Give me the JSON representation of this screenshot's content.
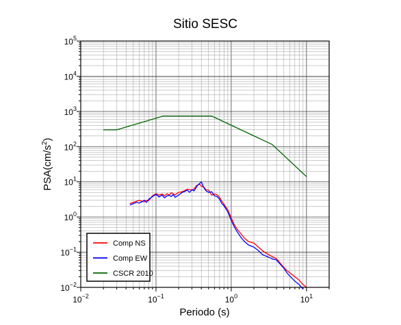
{
  "chart_data": {
    "type": "line",
    "title": "Sitio SESC",
    "xlabel": "Periodo (s)",
    "ylabel_base": "PSA(cm/s",
    "ylabel_sup": "2",
    "ylabel_tail": ")",
    "x_scale": "log",
    "y_scale": "log",
    "xlim": [
      0.01,
      20
    ],
    "ylim": [
      0.01,
      100000
    ],
    "x_ticks": [
      {
        "value": 0.01,
        "base": "10",
        "exp": "−2"
      },
      {
        "value": 0.1,
        "base": "10",
        "exp": "−1"
      },
      {
        "value": 1,
        "base": "10",
        "exp": "0"
      },
      {
        "value": 10,
        "base": "10",
        "exp": "1"
      }
    ],
    "y_ticks": [
      {
        "value": 0.01,
        "base": "10",
        "exp": "−2"
      },
      {
        "value": 0.1,
        "base": "10",
        "exp": "−1"
      },
      {
        "value": 1,
        "base": "10",
        "exp": "0"
      },
      {
        "value": 10,
        "base": "10",
        "exp": "1"
      },
      {
        "value": 100,
        "base": "10",
        "exp": "2"
      },
      {
        "value": 1000,
        "base": "10",
        "exp": "3"
      },
      {
        "value": 10000,
        "base": "10",
        "exp": "4"
      },
      {
        "value": 100000,
        "base": "10",
        "exp": "5"
      }
    ],
    "grid": true,
    "legend_position": "bottom-left",
    "series": [
      {
        "name": "Comp NS",
        "color": "#ff0000",
        "x": [
          0.045,
          0.05,
          0.055,
          0.06,
          0.065,
          0.07,
          0.075,
          0.08,
          0.09,
          0.1,
          0.11,
          0.12,
          0.13,
          0.14,
          0.15,
          0.16,
          0.17,
          0.18,
          0.2,
          0.22,
          0.24,
          0.26,
          0.28,
          0.3,
          0.32,
          0.35,
          0.38,
          0.4,
          0.43,
          0.46,
          0.5,
          0.55,
          0.6,
          0.65,
          0.7,
          0.75,
          0.8,
          0.9,
          1.0,
          1.1,
          1.2,
          1.35,
          1.5,
          1.7,
          2.0,
          2.3,
          2.6,
          3.0,
          3.5,
          4.0,
          4.5,
          5.0,
          5.5,
          6.0,
          7.0,
          8.0,
          9.0,
          10.0
        ],
        "y": [
          2.4,
          2.6,
          2.8,
          3.0,
          2.8,
          2.7,
          3.0,
          2.9,
          4.0,
          4.6,
          4.2,
          4.5,
          4.0,
          4.6,
          4.2,
          4.9,
          4.5,
          4.3,
          5.0,
          5.2,
          5.6,
          6.2,
          6.0,
          5.8,
          6.3,
          8.0,
          8.5,
          7.5,
          7.2,
          6.0,
          5.8,
          4.2,
          4.5,
          4.3,
          3.6,
          2.8,
          2.3,
          1.6,
          0.95,
          0.6,
          0.45,
          0.33,
          0.25,
          0.2,
          0.18,
          0.14,
          0.11,
          0.09,
          0.075,
          0.065,
          0.048,
          0.037,
          0.03,
          0.026,
          0.02,
          0.016,
          0.012,
          0.01
        ]
      },
      {
        "name": "Comp EW",
        "color": "#0000ff",
        "x": [
          0.045,
          0.05,
          0.055,
          0.06,
          0.065,
          0.07,
          0.075,
          0.08,
          0.09,
          0.1,
          0.11,
          0.12,
          0.13,
          0.14,
          0.15,
          0.16,
          0.17,
          0.18,
          0.2,
          0.22,
          0.24,
          0.26,
          0.28,
          0.3,
          0.32,
          0.35,
          0.38,
          0.4,
          0.43,
          0.46,
          0.5,
          0.55,
          0.6,
          0.65,
          0.7,
          0.75,
          0.8,
          0.9,
          1.0,
          1.1,
          1.2,
          1.35,
          1.5,
          1.7,
          2.0,
          2.3,
          2.6,
          3.0,
          3.5,
          4.0,
          4.5,
          5.0,
          5.5,
          6.0,
          7.0,
          8.0,
          9.0
        ],
        "y": [
          2.2,
          2.4,
          2.6,
          2.5,
          2.7,
          3.0,
          2.6,
          3.2,
          3.8,
          4.4,
          3.7,
          4.2,
          3.5,
          4.0,
          4.1,
          3.8,
          4.4,
          3.6,
          4.2,
          4.9,
          5.3,
          5.8,
          5.0,
          6.0,
          5.5,
          7.5,
          9.0,
          10.0,
          7.0,
          5.6,
          5.0,
          5.2,
          4.0,
          3.8,
          3.2,
          2.4,
          2.1,
          1.4,
          0.8,
          0.52,
          0.38,
          0.26,
          0.2,
          0.16,
          0.14,
          0.11,
          0.085,
          0.075,
          0.065,
          0.06,
          0.045,
          0.035,
          0.026,
          0.021,
          0.015,
          0.012,
          0.009
        ]
      },
      {
        "name": "CSCR 2010",
        "color": "#006400",
        "x": [
          0.02,
          0.03,
          0.125,
          0.55,
          3.5,
          10.0
        ],
        "y": [
          300,
          300,
          740,
          740,
          115,
          14
        ]
      }
    ]
  }
}
